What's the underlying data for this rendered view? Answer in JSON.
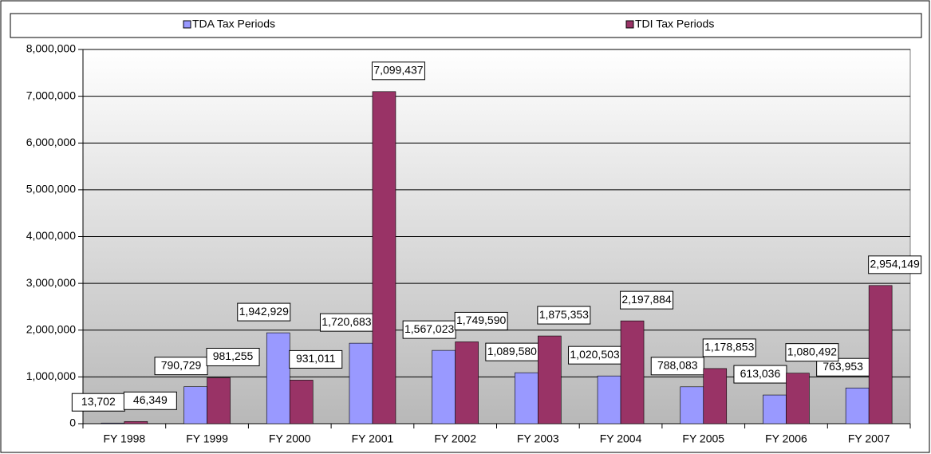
{
  "chart_data": {
    "type": "bar",
    "categories": [
      "FY 1998",
      "FY 1999",
      "FY 2000",
      "FY 2001",
      "FY 2002",
      "FY 2003",
      "FY 2004",
      "FY 2005",
      "FY 2006",
      "FY 2007"
    ],
    "series": [
      {
        "name": "TDA Tax Periods",
        "color": "#9999ff",
        "values": [
          13702,
          790729,
          1942929,
          1720683,
          1567023,
          1089580,
          1020503,
          788083,
          613036,
          763953
        ],
        "value_labels": [
          "13,702",
          "790,729",
          "1,942,929",
          "1,720,683",
          "1,567,023",
          "1,089,580",
          "1,020,503",
          "788,083",
          "613,036",
          "763,953"
        ]
      },
      {
        "name": "TDI Tax Periods",
        "color": "#993366",
        "values": [
          46349,
          981255,
          931011,
          7099437,
          1749590,
          1875353,
          2197884,
          1178853,
          1080492,
          2954149
        ],
        "value_labels": [
          "46,349",
          "981,255",
          "931,011",
          "7,099,437",
          "1,749,590",
          "1,875,353",
          "2,197,884",
          "1,178,853",
          "1,080,492",
          "2,954,149"
        ]
      }
    ],
    "ylim": [
      0,
      8000000
    ],
    "yticks": [
      0,
      {
        "value": 1000000,
        "label": "1,000,000"
      },
      {
        "value": 2000000,
        "label": "2,000,000"
      },
      {
        "value": 3000000,
        "label": "3,000,000"
      },
      {
        "value": 4000000,
        "label": "4,000,000"
      },
      {
        "value": 5000000,
        "label": "5,000,000"
      },
      {
        "value": 6000000,
        "label": "6,000,000"
      },
      {
        "value": 7000000,
        "label": "7,000,000"
      },
      {
        "value": 8000000,
        "label": "8,000,000"
      }
    ],
    "grid": true,
    "legend": "top"
  }
}
